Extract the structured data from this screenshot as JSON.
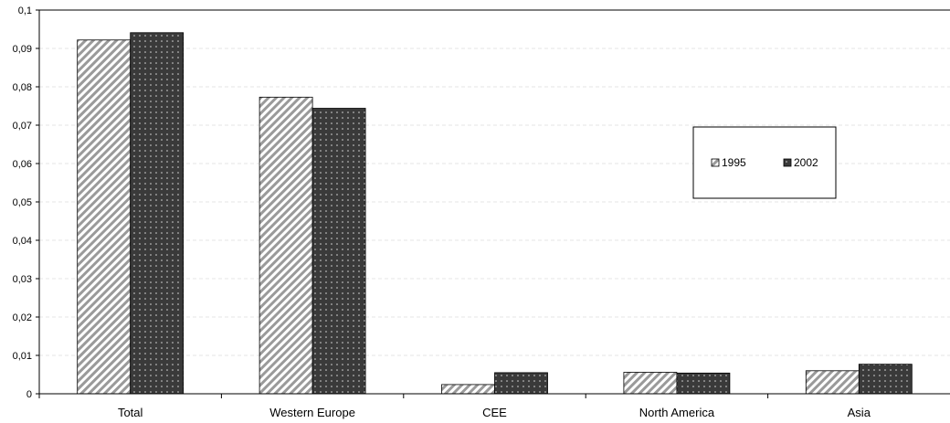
{
  "chart_data": {
    "type": "bar",
    "categories": [
      "Total",
      "Western Europe",
      "CEE",
      "North America",
      "Asia"
    ],
    "series": [
      {
        "name": "1995",
        "values": [
          0.0922,
          0.0773,
          0.0024,
          0.0056,
          0.006
        ]
      },
      {
        "name": "2002",
        "values": [
          0.0941,
          0.0744,
          0.0055,
          0.0054,
          0.0077
        ]
      }
    ],
    "ylim": [
      0,
      0.1
    ],
    "yticks": [
      "0",
      "0,01",
      "0,02",
      "0,03",
      "0,04",
      "0,05",
      "0,06",
      "0,07",
      "0,08",
      "0,09",
      "0,1"
    ],
    "grid": false,
    "legend_position": "right",
    "colors": {
      "series_1995_pattern": "#9a9a9a",
      "series_2002_fill": "#3a3a3a",
      "axis": "#000000"
    }
  }
}
